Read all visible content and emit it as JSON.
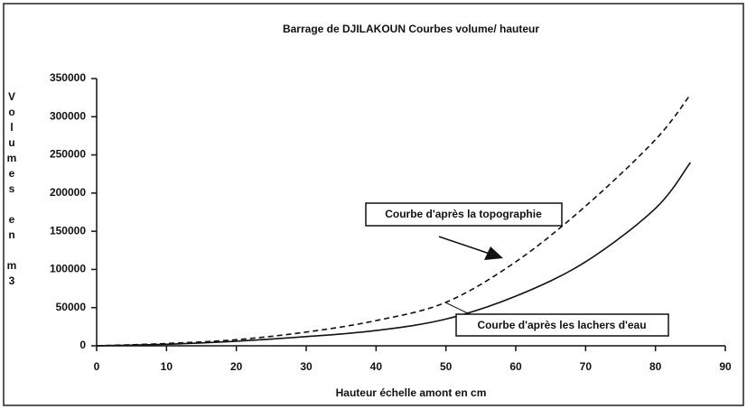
{
  "chart_data": {
    "type": "line",
    "title": "Barrage de DJILAKOUN    Courbes volume/ hauteur",
    "x_label": "Hauteur échelle amont en cm",
    "y_label": "Volumes en m3",
    "x": [
      0,
      10,
      20,
      30,
      40,
      50,
      60,
      70,
      80,
      85
    ],
    "series": [
      {
        "name": "Courbe d'après la topographie",
        "color": "#111111",
        "dashed": true,
        "values": [
          0,
          3000,
          8000,
          18000,
          33000,
          57000,
          110000,
          183000,
          270000,
          329000
        ]
      },
      {
        "name": "Courbe d'après les lachers d'eau",
        "color": "#111111",
        "dashed": false,
        "values": [
          0,
          2000,
          6000,
          12000,
          20000,
          35000,
          65000,
          110000,
          180000,
          240000
        ]
      }
    ],
    "xlim": [
      0,
      90
    ],
    "xticks": [
      0,
      10,
      20,
      30,
      40,
      50,
      60,
      70,
      80,
      90
    ],
    "ylim": [
      0,
      350000
    ],
    "yticks": [
      0,
      50000,
      100000,
      150000,
      200000,
      250000,
      300000,
      350000
    ],
    "grid": false
  }
}
